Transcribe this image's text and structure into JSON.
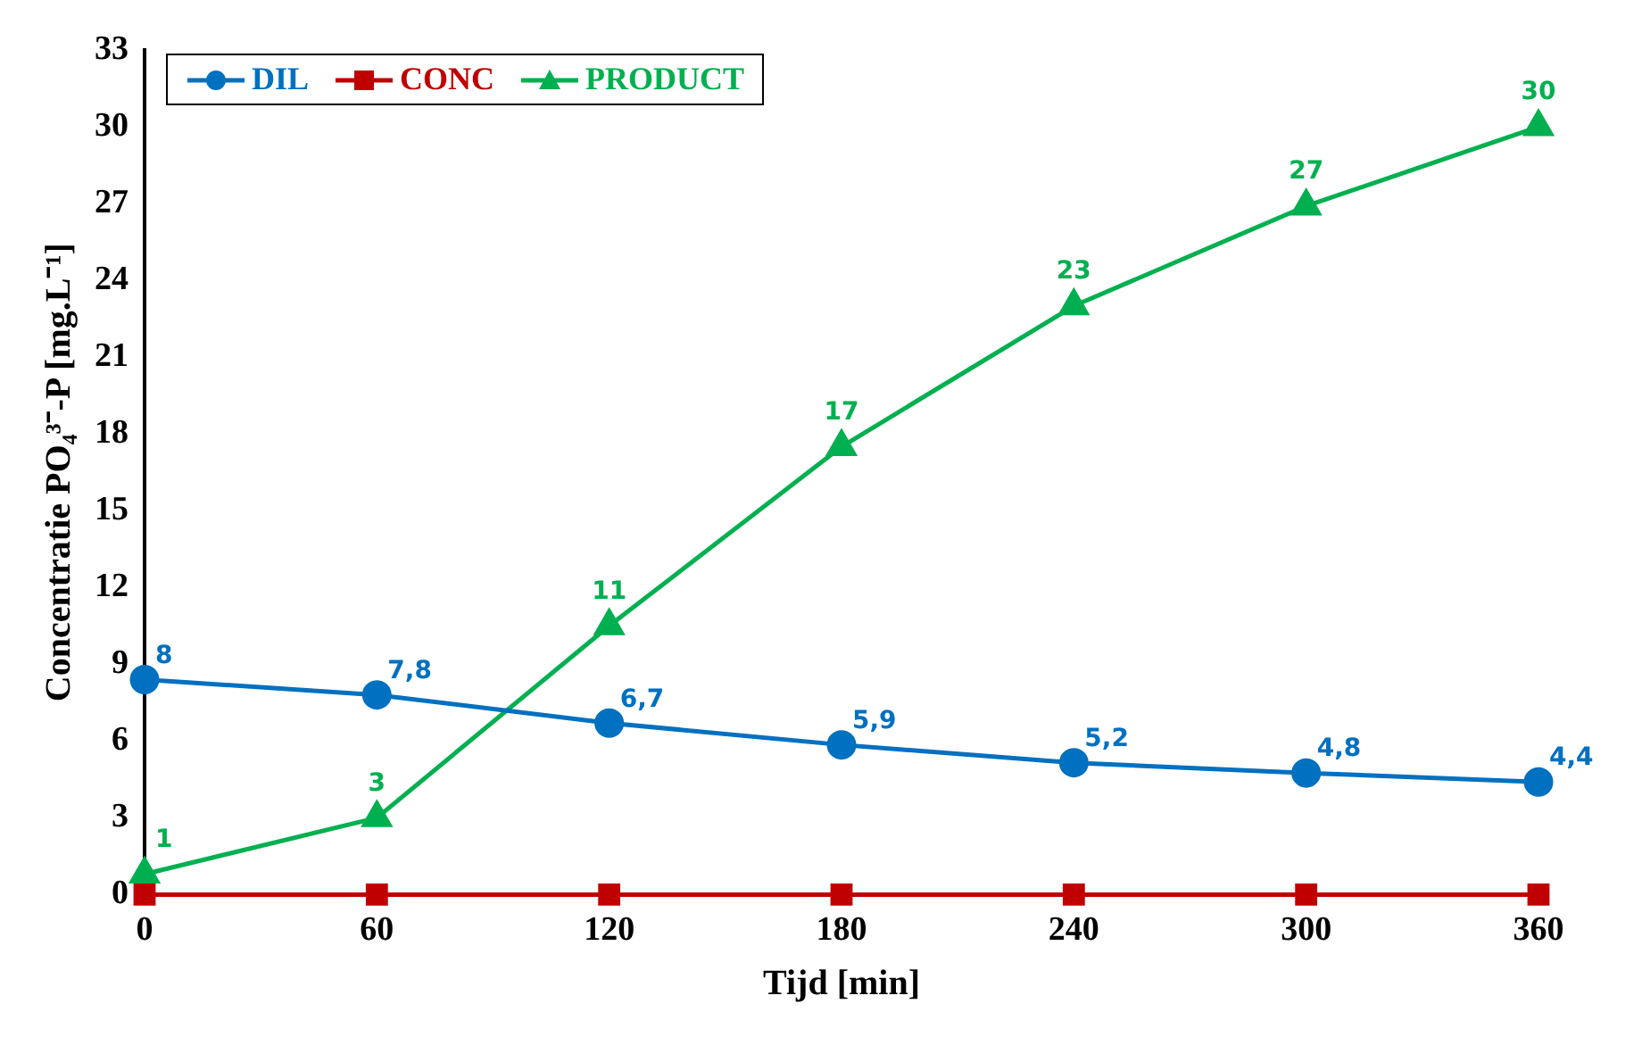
{
  "chart_data": {
    "type": "line",
    "xlabel": "Tijd [min]",
    "ylabel": "Concentratie PO₄³⁻-P [mg.L⁻¹]",
    "x": [
      0,
      60,
      120,
      180,
      240,
      300,
      360
    ],
    "series": [
      {
        "name": "DIL",
        "color": "#0070c0",
        "marker": "circle",
        "values": [
          8.4,
          7.8,
          6.7,
          5.85,
          5.15,
          4.75,
          4.4
        ],
        "value_labels": [
          "8",
          "7,8",
          "6,7",
          "5,9",
          "5,2",
          "4,8",
          "4,4"
        ]
      },
      {
        "name": "CONC",
        "color": "#c00000",
        "marker": "square",
        "values": [
          0,
          0,
          0,
          0,
          0,
          0,
          0
        ]
      },
      {
        "name": "PRODUCT",
        "color": "#00b050",
        "marker": "triangle",
        "values": [
          0.8,
          3,
          10.5,
          17.5,
          23,
          26.9,
          30
        ],
        "value_labels": [
          "1",
          "3",
          "11",
          "17",
          "23",
          "27",
          "30"
        ]
      }
    ],
    "xlim": [
      0,
      360
    ],
    "xticks": [
      0,
      60,
      120,
      180,
      240,
      300,
      360
    ],
    "ylim": [
      0,
      33
    ],
    "yticks": [
      0,
      3,
      6,
      9,
      12,
      15,
      18,
      21,
      24,
      27,
      30,
      33
    ],
    "grid": false,
    "legend": "top left",
    "line_style": "solid"
  }
}
